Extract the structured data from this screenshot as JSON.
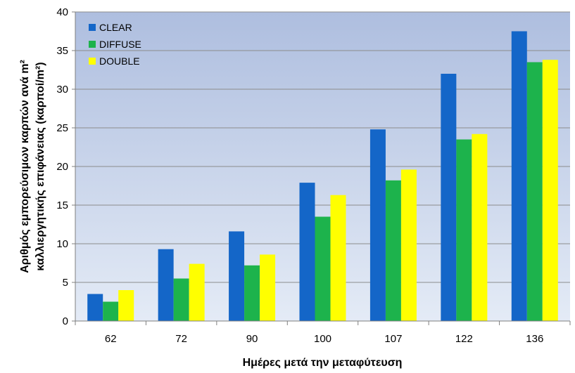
{
  "chart_data": {
    "type": "bar",
    "categories": [
      "62",
      "72",
      "90",
      "100",
      "107",
      "122",
      "136"
    ],
    "series": [
      {
        "name": "CLEAR",
        "color": "#1466c8",
        "values": [
          3.5,
          9.3,
          11.6,
          17.9,
          24.8,
          32.0,
          37.5
        ]
      },
      {
        "name": "DIFFUSE",
        "color": "#1db34c",
        "values": [
          2.5,
          5.5,
          7.2,
          13.5,
          18.2,
          23.5,
          33.5
        ]
      },
      {
        "name": "DOUBLE",
        "color": "#ffff00",
        "values": [
          4.0,
          7.4,
          8.6,
          16.3,
          19.6,
          24.2,
          33.8
        ]
      }
    ],
    "xlabel": "Ημέρες μετά την μεταφύτευση",
    "ylabel_line1": "Αριθμός εμπορεύσιμων καρπών ανά m²",
    "ylabel_line2": "καλλιεργητικής επιφάνειας (καρποί/m²)",
    "ylim": [
      0,
      40
    ],
    "yticks": [
      0,
      5,
      10,
      15,
      20,
      25,
      30,
      35,
      40
    ],
    "grid": true,
    "legend_position": "top-left",
    "plot_background": [
      "#aebedf",
      "#e4ebf6"
    ]
  }
}
